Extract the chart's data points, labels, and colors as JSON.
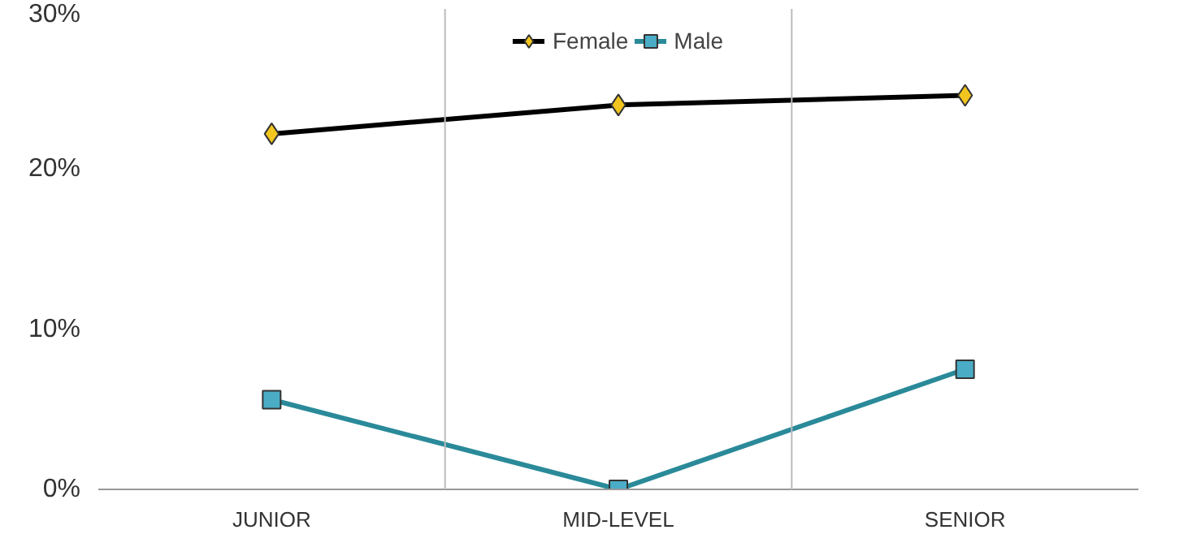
{
  "chart_data": {
    "type": "line",
    "categories": [
      "JUNIOR",
      "MID-LEVEL",
      "SENIOR"
    ],
    "series": [
      {
        "name": "Female",
        "color": "#000000",
        "colors": [
          "#f2c61f",
          "#f2c61f",
          "#f2c61f"
        ],
        "marker": "diamond",
        "values": [
          22.2,
          24.0,
          24.6
        ]
      },
      {
        "name": "Male",
        "color": "#2a8a99",
        "colors": [
          "#4bacc6",
          "#4bacc6",
          "#4bacc6"
        ],
        "marker": "square",
        "values": [
          5.6,
          0,
          7.5
        ]
      }
    ],
    "ylim": [
      0,
      30
    ],
    "yticks": [
      {
        "value": 0,
        "label": "0%"
      },
      {
        "value": 10,
        "label": "10%"
      },
      {
        "value": 20,
        "label": "20%"
      },
      {
        "value": 30,
        "label": "30%"
      }
    ],
    "grid": "x",
    "legend": "top"
  }
}
